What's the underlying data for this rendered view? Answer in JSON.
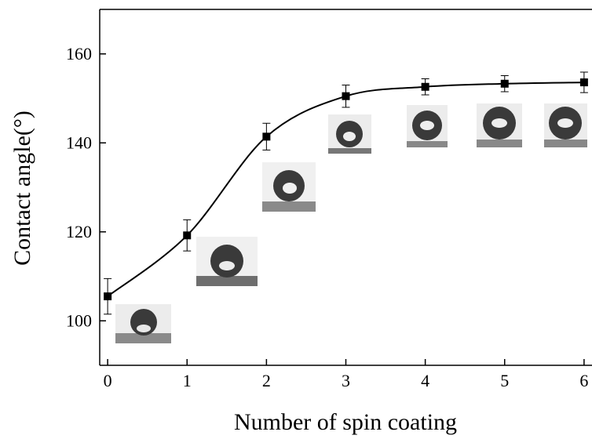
{
  "chart_data": {
    "type": "line",
    "x_label": "Number of spin coating",
    "y_label": "Contact angle(°)",
    "x": [
      0,
      1,
      2,
      3,
      4,
      5,
      6
    ],
    "values": [
      105.5,
      119.2,
      141.4,
      150.5,
      152.6,
      153.3,
      153.6
    ],
    "errors": [
      4,
      3.5,
      3,
      2.5,
      1.8,
      1.8,
      2.3
    ],
    "color": "#000000",
    "xlim": [
      -0.1,
      6.1
    ],
    "xticks": [
      0,
      1,
      2,
      3,
      4,
      5,
      6
    ],
    "ylim": [
      90,
      170
    ],
    "yticks": [
      100,
      120,
      140,
      160
    ]
  }
}
